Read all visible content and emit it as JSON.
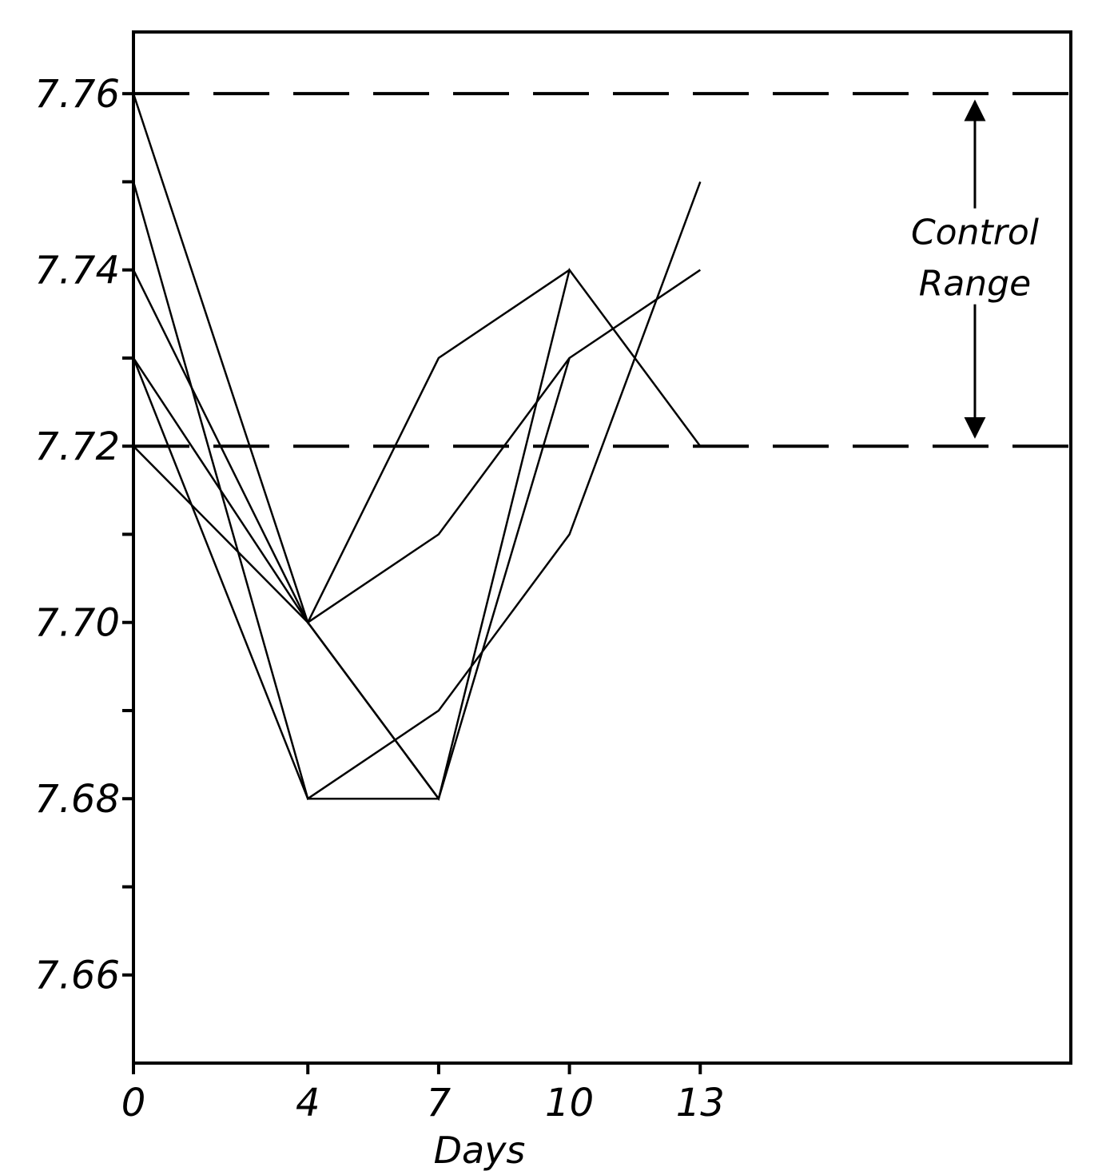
{
  "chart_data": {
    "type": "line",
    "title": "",
    "xlabel": "Days",
    "ylabel": "",
    "x_ticks": [
      0,
      4,
      7,
      10,
      13
    ],
    "x_tick_labels": [
      "0",
      "4",
      "7",
      "10",
      "13"
    ],
    "y_ticks": [
      7.66,
      7.68,
      7.7,
      7.72,
      7.74,
      7.76
    ],
    "y_tick_labels": [
      "7.66",
      "7.68",
      "7.70",
      "7.72",
      "7.74",
      "7.76"
    ],
    "y_minor_ticks": [
      7.67,
      7.69,
      7.71,
      7.73,
      7.75
    ],
    "xlim": [
      0,
      21.5
    ],
    "ylim": [
      7.65,
      7.767
    ],
    "grid": false,
    "series": [
      {
        "x": [
          0,
          4,
          7,
          10,
          13
        ],
        "y": [
          7.76,
          7.7,
          7.68,
          7.73,
          7.74
        ]
      },
      {
        "x": [
          0,
          4,
          7,
          10,
          13
        ],
        "y": [
          7.75,
          7.68,
          7.68,
          7.74,
          7.72
        ]
      },
      {
        "x": [
          0,
          4,
          7,
          10
        ],
        "y": [
          7.74,
          7.7,
          7.73,
          7.74
        ]
      },
      {
        "x": [
          0,
          4,
          7,
          10,
          13
        ],
        "y": [
          7.73,
          7.68,
          7.69,
          7.71,
          7.75
        ]
      },
      {
        "x": [
          0,
          4,
          7,
          10
        ],
        "y": [
          7.73,
          7.7,
          7.71,
          7.73
        ]
      },
      {
        "x": [
          0,
          4,
          7
        ],
        "y": [
          7.72,
          7.7,
          7.68
        ]
      }
    ],
    "reference_lines": [
      {
        "y": 7.76,
        "style": "dashed"
      },
      {
        "y": 7.72,
        "style": "dashed"
      }
    ],
    "annotation": {
      "lines": [
        "Control",
        "Range"
      ],
      "x": 19.3,
      "range": [
        7.72,
        7.76
      ]
    }
  }
}
